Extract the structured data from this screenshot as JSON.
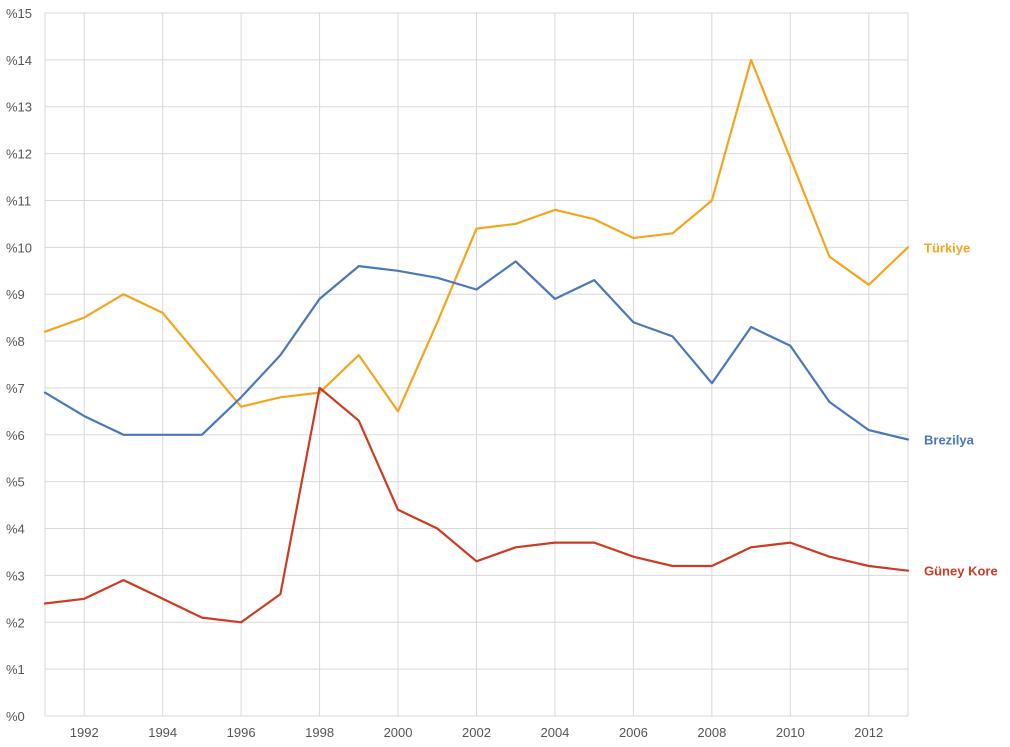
{
  "chart_data": {
    "type": "line",
    "x": [
      1991,
      1992,
      1993,
      1994,
      1995,
      1996,
      1997,
      1998,
      1999,
      2000,
      2001,
      2002,
      2003,
      2004,
      2005,
      2006,
      2007,
      2008,
      2009,
      2010,
      2011,
      2012,
      2013
    ],
    "xlim": [
      1991,
      2013
    ],
    "ylim": [
      0,
      15
    ],
    "x_ticks": [
      1992,
      1994,
      1996,
      1998,
      2000,
      2002,
      2004,
      2006,
      2008,
      2010,
      2012
    ],
    "x_tick_labels": [
      "1992",
      "1994",
      "1996",
      "1998",
      "2000",
      "2002",
      "2004",
      "2006",
      "2008",
      "2010",
      "2012"
    ],
    "y_ticks": [
      0,
      1,
      2,
      3,
      4,
      5,
      6,
      7,
      8,
      9,
      10,
      11,
      12,
      13,
      14,
      15
    ],
    "y_tick_labels": [
      "%0",
      "%1",
      "%2",
      "%3",
      "%4",
      "%5",
      "%6",
      "%7",
      "%8",
      "%9",
      "%10",
      "%11",
      "%12",
      "%13",
      "%14",
      "%15"
    ],
    "grid": true,
    "legend": "inline labels at right end of each series",
    "series": [
      {
        "name": "Türkiye",
        "color": "#f2a51f",
        "values": [
          8.2,
          8.5,
          9.0,
          8.6,
          7.6,
          6.6,
          6.8,
          6.9,
          7.7,
          6.5,
          8.4,
          10.4,
          10.5,
          10.8,
          10.6,
          10.2,
          10.3,
          11.0,
          14.0,
          11.9,
          9.8,
          9.2,
          10.0
        ]
      },
      {
        "name": "Brezilya",
        "color": "#4a78b8",
        "values": [
          6.9,
          6.4,
          6.0,
          6.0,
          6.0,
          6.8,
          7.7,
          8.9,
          9.6,
          9.5,
          9.35,
          9.1,
          9.7,
          8.9,
          9.3,
          8.4,
          8.1,
          7.1,
          8.3,
          7.9,
          6.7,
          6.1,
          5.9
        ]
      },
      {
        "name": "Güney Kore",
        "color": "#cc3b24",
        "values": [
          2.4,
          2.5,
          2.9,
          2.5,
          2.1,
          2.0,
          2.6,
          7.0,
          6.3,
          4.4,
          4.0,
          3.3,
          3.6,
          3.7,
          3.7,
          3.4,
          3.2,
          3.2,
          3.6,
          3.7,
          3.4,
          3.2,
          3.1
        ]
      }
    ]
  }
}
